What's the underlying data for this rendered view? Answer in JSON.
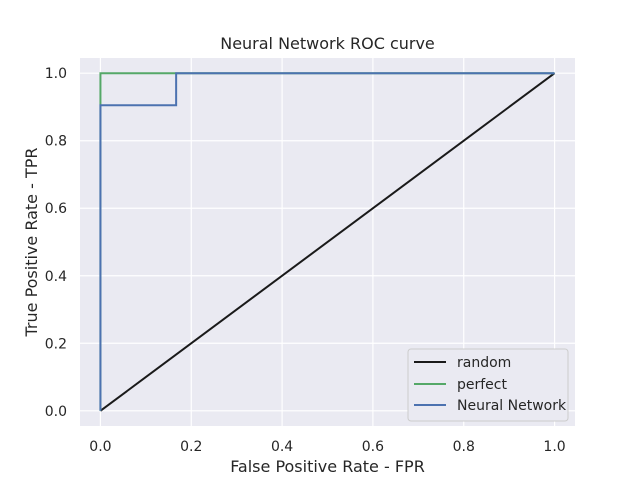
{
  "chart_data": {
    "type": "line",
    "title": "Neural Network ROC curve",
    "xlabel": "False Positive Rate - FPR",
    "ylabel": "True Positive Rate - TPR",
    "xlim": [
      -0.045,
      1.045
    ],
    "ylim": [
      -0.045,
      1.045
    ],
    "xticks": [
      0.0,
      0.2,
      0.4,
      0.6,
      0.8,
      1.0
    ],
    "yticks": [
      0.0,
      0.2,
      0.4,
      0.6,
      0.8,
      1.0
    ],
    "xtick_labels": [
      "0.0",
      "0.2",
      "0.4",
      "0.6",
      "0.8",
      "1.0"
    ],
    "ytick_labels": [
      "0.0",
      "0.2",
      "0.4",
      "0.6",
      "0.8",
      "1.0"
    ],
    "grid": true,
    "legend_position": "lower-right",
    "series": [
      {
        "name": "random",
        "color": "#1a1a1a",
        "x": [
          0.0,
          1.0
        ],
        "y": [
          0.0,
          1.0
        ]
      },
      {
        "name": "perfect",
        "color": "#55a868",
        "x": [
          0.0,
          0.0,
          1.0
        ],
        "y": [
          0.0,
          1.0,
          1.0
        ]
      },
      {
        "name": "Neural Network",
        "color": "#4c72b0",
        "x": [
          0.0,
          0.0,
          0.1667,
          0.1667,
          1.0
        ],
        "y": [
          0.0,
          0.905,
          0.905,
          1.0,
          1.0
        ]
      }
    ]
  }
}
